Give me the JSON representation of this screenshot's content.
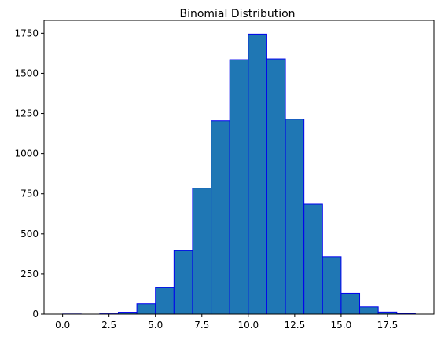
{
  "chart_data": {
    "type": "bar",
    "title": "Binomial Distribution",
    "xlabel": "",
    "ylabel": "",
    "xlim": [
      -1,
      20
    ],
    "ylim": [
      0,
      1830
    ],
    "bin_edges": [
      0,
      1,
      2,
      3,
      4,
      5,
      6,
      7,
      8,
      9,
      10,
      11,
      12,
      13,
      14,
      15,
      16,
      17,
      18,
      19
    ],
    "values": [
      1,
      0,
      2,
      12,
      65,
      165,
      395,
      785,
      1205,
      1585,
      1745,
      1590,
      1215,
      685,
      358,
      130,
      45,
      13,
      4
    ],
    "xticks": [
      "0.0",
      "2.5",
      "5.0",
      "7.5",
      "10.0",
      "12.5",
      "15.0",
      "17.5"
    ],
    "yticks": [
      "0",
      "250",
      "500",
      "750",
      "1000",
      "1250",
      "1500",
      "1750"
    ],
    "bar_fill": "#1f77b4",
    "bar_edge": "#0000ee",
    "grid": false,
    "legend": "none"
  }
}
